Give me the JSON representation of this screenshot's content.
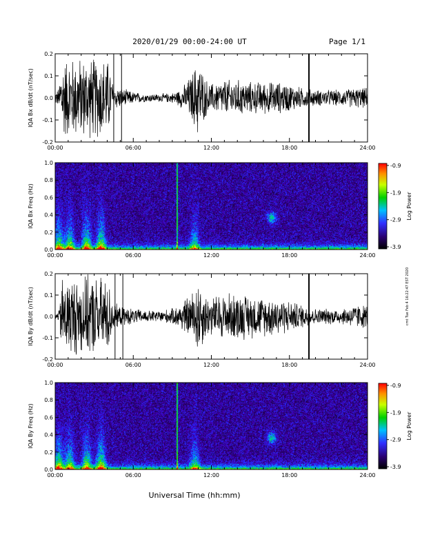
{
  "header": {
    "title": "2020/01/29  00:00-24:00 UT",
    "page": "Page 1/1"
  },
  "footer": {
    "xlabel": "Universal Time (hh:mm)",
    "side_note": "cmt Tue Feb 4 16:22:47 EST 2020"
  },
  "chart_data": [
    {
      "type": "line",
      "name": "bx-waveform",
      "ylabel": "IQA Bx dB/dt (nT/sec)",
      "xlim": [
        0,
        24
      ],
      "ylim": [
        -0.2,
        0.2
      ],
      "yticks": [
        "0.2",
        "0.1",
        "0.0",
        "-0.1",
        "-0.2"
      ],
      "xticks": [
        "00:00",
        "06:00",
        "12:00",
        "18:00",
        "24:00"
      ],
      "envelope": {
        "x_hours": [
          0,
          0.3,
          0.5,
          1.0,
          2.0,
          3.0,
          4.0,
          4.3,
          4.5,
          5.0,
          6.0,
          7.0,
          8.0,
          9.0,
          9.5,
          10.0,
          10.5,
          11.0,
          11.5,
          12.0,
          13.0,
          14.0,
          15.0,
          16.0,
          17.0,
          18.0,
          19.0,
          20.0,
          21.0,
          22.0,
          23.0,
          24.0
        ],
        "amplitude": [
          0.03,
          0.05,
          0.2,
          0.2,
          0.2,
          0.2,
          0.2,
          0.12,
          0.06,
          0.05,
          0.03,
          0.02,
          0.02,
          0.025,
          0.04,
          0.07,
          0.12,
          0.2,
          0.1,
          0.07,
          0.09,
          0.09,
          0.08,
          0.08,
          0.08,
          0.07,
          0.05,
          0.04,
          0.04,
          0.04,
          0.05,
          0.05
        ]
      },
      "spikes_hours": [
        4.5,
        5.1,
        19.5
      ]
    },
    {
      "type": "heatmap",
      "name": "bx-spectrogram",
      "ylabel": "IQA Bx Freq (Hz)",
      "xlim": [
        0,
        24
      ],
      "ylim": [
        0.0,
        1.0
      ],
      "yticks": [
        "1.0",
        "0.8",
        "0.6",
        "0.4",
        "0.2",
        "0.0"
      ],
      "xticks": [
        "00:00",
        "06:00",
        "12:00",
        "18:00",
        "24:00"
      ],
      "colorbar": {
        "label": "Log Power",
        "range": [
          -3.9,
          -0.9
        ],
        "ticks": [
          "-0.9",
          "-1.9",
          "-2.9",
          "-3.9"
        ]
      }
    },
    {
      "type": "line",
      "name": "by-waveform",
      "ylabel": "IQA By dB/dt (nT/sec)",
      "xlim": [
        0,
        24
      ],
      "ylim": [
        -0.2,
        0.2
      ],
      "yticks": [
        "0.2",
        "0.1",
        "0.0",
        "-0.1",
        "-0.2"
      ],
      "xticks": [
        "00:00",
        "06:00",
        "12:00",
        "18:00",
        "24:00"
      ],
      "envelope": {
        "x_hours": [
          0,
          0.3,
          0.5,
          1.0,
          2.0,
          3.0,
          4.0,
          4.3,
          4.5,
          5.0,
          6.0,
          7.0,
          8.0,
          9.0,
          9.5,
          10.0,
          10.5,
          11.0,
          11.5,
          12.0,
          13.0,
          14.0,
          15.0,
          16.0,
          17.0,
          18.0,
          19.0,
          20.0,
          21.0,
          22.0,
          23.0,
          24.0
        ],
        "amplitude": [
          0.015,
          0.03,
          0.2,
          0.2,
          0.2,
          0.2,
          0.2,
          0.12,
          0.07,
          0.05,
          0.04,
          0.03,
          0.03,
          0.04,
          0.06,
          0.09,
          0.12,
          0.2,
          0.12,
          0.1,
          0.12,
          0.12,
          0.11,
          0.1,
          0.1,
          0.08,
          0.06,
          0.04,
          0.04,
          0.04,
          0.06,
          0.06
        ]
      },
      "spikes_hours": [
        4.6,
        5.2,
        19.5
      ]
    },
    {
      "type": "heatmap",
      "name": "by-spectrogram",
      "ylabel": "IQA By Freq (Hz)",
      "xlim": [
        0,
        24
      ],
      "ylim": [
        0.0,
        1.0
      ],
      "yticks": [
        "1.0",
        "0.8",
        "0.6",
        "0.4",
        "0.2",
        "0.0"
      ],
      "xticks": [
        "00:00",
        "06:00",
        "12:00",
        "18:00",
        "24:00"
      ],
      "colorbar": {
        "label": "Log Power",
        "range": [
          -3.9,
          -0.9
        ],
        "ticks": [
          "-0.9",
          "-1.9",
          "-2.9",
          "-3.9"
        ]
      }
    }
  ]
}
